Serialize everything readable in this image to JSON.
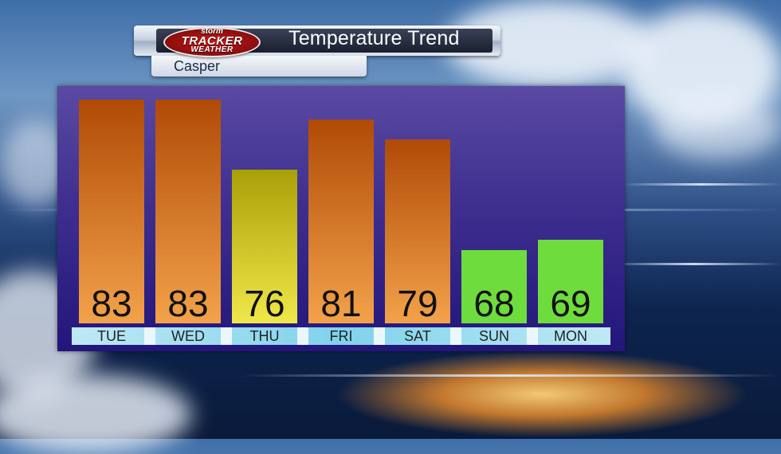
{
  "header": {
    "title": "Temperature Trend",
    "location": "Casper",
    "logo": {
      "line1": "storm",
      "line2": "TRACKER",
      "line3": "WEATHER"
    }
  },
  "colors": {
    "warm_top": "#b04a06",
    "warm_bottom": "#f3a24a",
    "mild_top": "#a8a006",
    "mild_bottom": "#f0e84a",
    "cool": "#6edc3c",
    "panel": "#3e2f8f"
  },
  "chart_data": {
    "type": "bar",
    "title": "Temperature Trend",
    "categories": [
      "TUE",
      "WED",
      "THU",
      "FRI",
      "SAT",
      "SUN",
      "MON"
    ],
    "values": [
      83,
      83,
      76,
      81,
      79,
      68,
      69
    ],
    "value_labels": [
      "83",
      "83",
      "76",
      "81",
      "79",
      "68",
      "69"
    ],
    "bar_styles": [
      "warm",
      "warm",
      "mild",
      "warm",
      "warm",
      "cool",
      "cool"
    ],
    "grid": false
  }
}
